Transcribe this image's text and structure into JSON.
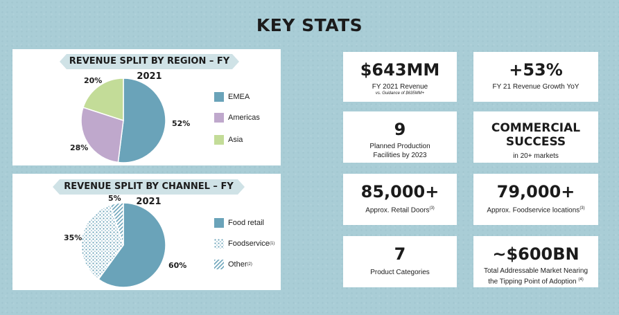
{
  "title": "KEY STATS",
  "colors": {
    "background": "#a9cdd6",
    "primary": "#6aa3b9",
    "americas": "#bfa8cc",
    "asia": "#c3dc98"
  },
  "chart_data": [
    {
      "type": "pie",
      "title": "REVENUE SPLIT BY REGION – FY 2021",
      "categories": [
        "EMEA",
        "Americas",
        "Asia"
      ],
      "values": [
        52,
        28,
        20
      ],
      "labels": [
        "52%",
        "28%",
        "20%"
      ],
      "colors": [
        "#6aa3b9",
        "#bfa8cc",
        "#c3dc98"
      ],
      "legend": "right"
    },
    {
      "type": "pie",
      "title": "REVENUE SPLIT BY CHANNEL – FY 2021",
      "categories": [
        "Food retail",
        "Foodservice",
        "Other"
      ],
      "footnotes": [
        "",
        "(1)",
        "(2)"
      ],
      "values": [
        60,
        35,
        5
      ],
      "labels": [
        "60%",
        "35%",
        "5%"
      ],
      "fills": [
        "solid",
        "dots",
        "stripes"
      ],
      "legend": "right"
    }
  ],
  "stats": [
    {
      "value": "$643MM",
      "label": "FY 2021 Revenue",
      "sub": "vs. Guidance of $635MM+"
    },
    {
      "value": "+53%",
      "label": "FY 21 Revenue Growth YoY"
    },
    {
      "value": "9",
      "label_line1": "Planned Production",
      "label_line2": "Facilities by 2023"
    },
    {
      "value_line1": "COMMERCIAL",
      "value_line2": "SUCCESS",
      "label": "in 20+ markets"
    },
    {
      "value": "85,000+",
      "label": "Approx. Retail Doors",
      "footnote": "(3)"
    },
    {
      "value": "79,000+",
      "label": "Approx. Foodservice locations",
      "footnote": "(3)"
    },
    {
      "value": "7",
      "label": "Product Categories"
    },
    {
      "value": "~$600BN",
      "label_line1": "Total Addressable Market Nearing",
      "label_line2": "the Tipping Point of Adoption",
      "footnote": "(4)"
    }
  ]
}
